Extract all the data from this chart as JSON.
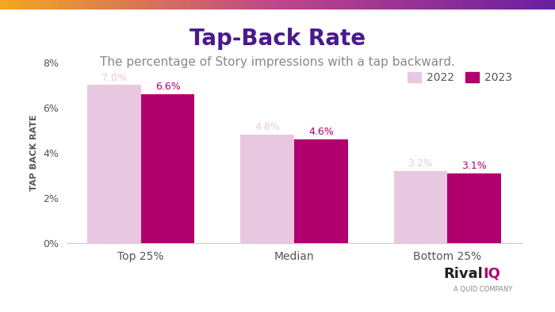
{
  "title": "Tap-Back Rate",
  "subtitle": "The percentage of Story impressions with a tap backward.",
  "categories": [
    "Top 25%",
    "Median",
    "Bottom 25%"
  ],
  "values_2022": [
    7.0,
    4.8,
    3.2
  ],
  "values_2023": [
    6.6,
    4.6,
    3.1
  ],
  "labels_2022": [
    "7.0%",
    "4.8%",
    "3.2%"
  ],
  "labels_2023": [
    "6.6%",
    "4.6%",
    "3.1%"
  ],
  "color_2022": "#e8c8e0",
  "color_2023": "#b0006e",
  "ylabel": "TAP BACK RATE",
  "ylim": [
    0,
    8
  ],
  "yticks": [
    0,
    2,
    4,
    6,
    8
  ],
  "ytick_labels": [
    "0%",
    "2%",
    "4%",
    "6%",
    "8%"
  ],
  "legend_labels": [
    "2022",
    "2023"
  ],
  "title_color": "#4a1a8c",
  "subtitle_color": "#888888",
  "ylabel_color": "#555555",
  "tick_color": "#555555",
  "bar_width": 0.35,
  "background_color": "#ffffff",
  "top_bar_color1": "#f5a623",
  "top_bar_color2": "#c0392b",
  "gradient_colors": [
    "#f5a623",
    "#c0392b",
    "#9b59b6"
  ],
  "title_fontsize": 20,
  "subtitle_fontsize": 11,
  "ylabel_fontsize": 8,
  "annotation_fontsize": 9,
  "legend_fontsize": 10
}
